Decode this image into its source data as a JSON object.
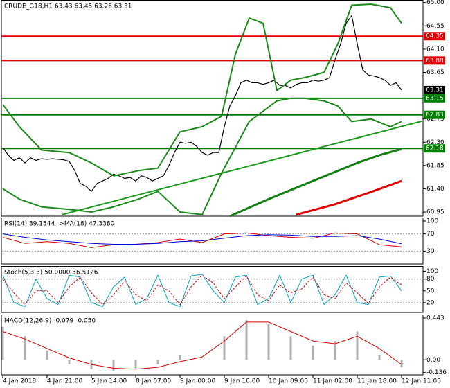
{
  "chart_data": [
    {
      "type": "line",
      "title": "CRUDE_G18,H1  63.43 63.45 63.26 63.31",
      "categories": [
        "4 Jan 2018",
        null,
        null,
        null,
        null,
        null,
        null,
        null,
        "4 Jan 21:00",
        null,
        null,
        null,
        null,
        null,
        null,
        null,
        "5 Jan 14:00",
        null,
        null,
        null,
        null,
        null,
        null,
        null,
        "8 Jan 07:00",
        null,
        null,
        null,
        null,
        null,
        null,
        null,
        "9 Jan 00:00",
        null,
        null,
        null,
        null,
        null,
        null,
        null,
        "9 Jan 16:00",
        null,
        null,
        null,
        null,
        null,
        null,
        null,
        "10 Jan 09:00",
        null,
        null,
        null,
        null,
        null,
        null,
        null,
        "11 Jan 02:00",
        null,
        null,
        null,
        null,
        null,
        null,
        null,
        "11 Jan 18:00",
        null,
        null,
        null,
        null,
        null,
        null,
        null,
        "12 Jan 11:00"
      ],
      "ylim": [
        60.87,
        65.05
      ],
      "yticks": [
        {
          "value": 65,
          "label": "65.00"
        },
        64.55,
        {
          "value": 64.1,
          "label": "64.10"
        },
        63.65,
        {
          "value": 63.2,
          "label": "63.20"
        },
        62.75,
        {
          "value": 62.3,
          "label": "62.30"
        },
        61.85,
        {
          "value": 61.4,
          "label": "61.40"
        },
        60.95
      ],
      "levels": [
        {
          "value": 64.35,
          "color": "#e00000"
        },
        {
          "value": 63.88,
          "color": "#e00000"
        },
        {
          "value": 63.15,
          "color": "#008000"
        },
        {
          "value": 62.83,
          "color": "#008000"
        },
        {
          "value": 62.18,
          "color": "#008000"
        }
      ],
      "current_price": 63.31,
      "trendlines": [
        {
          "color": "#1a9a1a",
          "x": [
            10.75,
            75.75
          ],
          "values": [
            60.9,
            62.71
          ]
        }
      ],
      "series": [
        {
          "color": "#000000",
          "width": 1.2,
          "values": [
            62.2,
            62.05,
            61.95,
            62.0,
            61.9,
            62.0,
            61.95,
            61.98,
            61.97,
            61.98,
            61.97,
            61.96,
            61.93,
            61.75,
            61.5,
            61.45,
            61.35,
            61.5,
            61.55,
            61.6,
            61.68,
            61.65,
            61.6,
            61.62,
            61.55,
            61.65,
            61.62,
            61.55,
            61.6,
            61.65,
            61.85,
            62.1,
            62.3,
            62.28,
            62.3,
            62.22,
            62.1,
            62.05,
            62.1,
            62.1,
            62.6,
            63.0,
            63.2,
            63.45,
            63.5,
            63.45,
            63.45,
            63.42,
            63.45,
            63.5,
            63.4,
            63.4,
            63.35,
            63.42,
            63.45,
            63.45,
            63.5,
            63.48,
            63.5,
            63.55,
            63.9,
            64.2,
            64.6,
            64.75,
            64.2,
            63.7,
            63.6,
            63.58,
            63.55,
            63.5,
            63.4,
            63.45,
            63.31
          ]
        },
        {
          "color": "#1a8a1a",
          "width": 2,
          "x": [
            0,
            3,
            7,
            12,
            16,
            20,
            24.5,
            28,
            32,
            36,
            39.5,
            42,
            44.5,
            47,
            49.5,
            52,
            54.5,
            58,
            60.5,
            63,
            66.5,
            70,
            72
          ],
          "values": [
            63.03,
            62.6,
            62.15,
            62.1,
            61.9,
            61.65,
            61.75,
            61.8,
            62.5,
            62.6,
            62.8,
            64.0,
            64.7,
            64.6,
            63.3,
            63.5,
            63.55,
            63.65,
            64.2,
            64.95,
            64.97,
            64.9,
            64.6
          ]
        },
        {
          "color": "#1a8a1a",
          "width": 2,
          "x": [
            0,
            3,
            7,
            12,
            16,
            20,
            24.5,
            28,
            32,
            36,
            39.5,
            42,
            44.5,
            47,
            49.5,
            52,
            54.5,
            58,
            60.5,
            63,
            66.5,
            70,
            72
          ],
          "values": [
            61.4,
            61.2,
            61.05,
            61.0,
            60.95,
            61.05,
            61.2,
            61.35,
            60.95,
            60.9,
            61.7,
            62.2,
            62.7,
            62.9,
            63.1,
            63.15,
            63.15,
            63.1,
            63.0,
            62.7,
            62.75,
            62.6,
            62.7
          ]
        },
        {
          "color": "#108010",
          "width": 3,
          "x": [
            41,
            48,
            56,
            64,
            68,
            72
          ],
          "values": [
            60.87,
            61.2,
            61.55,
            61.9,
            62.05,
            62.17
          ]
        },
        {
          "color": "#e00000",
          "width": 3,
          "x": [
            53,
            60,
            66,
            72
          ],
          "values": [
            60.9,
            61.1,
            61.32,
            61.55
          ]
        }
      ]
    },
    {
      "type": "line",
      "title": "RSI(14) 39.1544 ->MA(18) 47.3380",
      "ylim": [
        0,
        108
      ],
      "yticks": [
        100,
        70,
        30
      ],
      "guides": [
        70,
        30
      ],
      "series": [
        {
          "color": "#d00000",
          "width": 1,
          "x": [
            0,
            4,
            8,
            12,
            16,
            20,
            24,
            28,
            32,
            36,
            40,
            44,
            48,
            52,
            56,
            60,
            64,
            68,
            72
          ],
          "values": [
            62,
            48,
            52,
            48,
            38,
            45,
            46,
            50,
            58,
            50,
            70,
            72,
            66,
            62,
            60,
            72,
            70,
            45,
            40
          ]
        },
        {
          "color": "#0000d0",
          "width": 1,
          "x": [
            0,
            4,
            8,
            12,
            16,
            20,
            24,
            28,
            32,
            36,
            40,
            44,
            48,
            52,
            56,
            60,
            64,
            68,
            72
          ],
          "values": [
            70,
            62,
            56,
            52,
            48,
            46,
            46,
            48,
            52,
            54,
            60,
            66,
            68,
            67,
            64,
            64,
            66,
            58,
            47
          ]
        }
      ]
    },
    {
      "type": "line",
      "title": "Stoch(5,3,3) 50.0000 56.5126",
      "ylim": [
        -5,
        113
      ],
      "yticks": [
        100,
        80,
        50,
        20
      ],
      "guides": [
        80,
        20
      ],
      "series": [
        {
          "color": "#00a0c0",
          "width": 1,
          "x": [
            0,
            2,
            4,
            6,
            8,
            10,
            12,
            14,
            16,
            18,
            20,
            22,
            24,
            26,
            28,
            30,
            32,
            34,
            36,
            38,
            40,
            42,
            44,
            46,
            48,
            50,
            52,
            54,
            56,
            58,
            60,
            62,
            64,
            66,
            68,
            70,
            72
          ],
          "values": [
            90,
            20,
            10,
            80,
            30,
            15,
            90,
            85,
            20,
            10,
            60,
            85,
            15,
            30,
            90,
            20,
            10,
            88,
            92,
            50,
            20,
            85,
            90,
            15,
            30,
            90,
            20,
            80,
            90,
            15,
            40,
            90,
            20,
            15,
            85,
            88,
            50
          ]
        },
        {
          "color": "#d00000",
          "width": 1,
          "dash": true,
          "x": [
            0,
            2,
            4,
            6,
            8,
            10,
            12,
            14,
            16,
            18,
            20,
            22,
            24,
            26,
            28,
            30,
            32,
            34,
            36,
            38,
            40,
            42,
            44,
            46,
            48,
            50,
            52,
            54,
            56,
            58,
            60,
            62,
            64,
            66,
            68,
            70,
            72
          ],
          "values": [
            80,
            45,
            15,
            50,
            50,
            20,
            60,
            85,
            45,
            15,
            40,
            75,
            40,
            25,
            65,
            50,
            15,
            60,
            90,
            70,
            30,
            60,
            88,
            40,
            25,
            65,
            45,
            55,
            85,
            40,
            30,
            70,
            45,
            18,
            60,
            85,
            65
          ]
        }
      ]
    },
    {
      "type": "bar",
      "title": "MACD(12,26,9) -0.079 -0.050",
      "ylim": [
        -0.16,
        0.48
      ],
      "yticks": [
        0.443,
        {
          "value": 0,
          "label": "0.00"
        },
        -0.136
      ],
      "series": [
        {
          "color": "#b0b0b0",
          "kind": "bar",
          "x": [
            0,
            4,
            8,
            12,
            16,
            20,
            24,
            28,
            32,
            36,
            40,
            44,
            48,
            52,
            56,
            60,
            64,
            68,
            72
          ],
          "values": [
            0.35,
            0.25,
            0.1,
            -0.05,
            -0.1,
            -0.12,
            -0.1,
            -0.05,
            0.05,
            0.0,
            0.25,
            0.42,
            0.38,
            0.25,
            0.15,
            0.2,
            0.3,
            0.05,
            -0.08
          ]
        },
        {
          "color": "#d00000",
          "width": 1,
          "x": [
            0,
            4,
            8,
            12,
            16,
            20,
            24,
            28,
            32,
            36,
            40,
            44,
            48,
            52,
            56,
            60,
            64,
            68,
            72
          ],
          "values": [
            0.3,
            0.22,
            0.12,
            0.02,
            -0.05,
            -0.09,
            -0.1,
            -0.08,
            -0.02,
            0.03,
            0.2,
            0.4,
            0.4,
            0.3,
            0.2,
            0.17,
            0.25,
            0.12,
            -0.05
          ]
        }
      ]
    }
  ]
}
